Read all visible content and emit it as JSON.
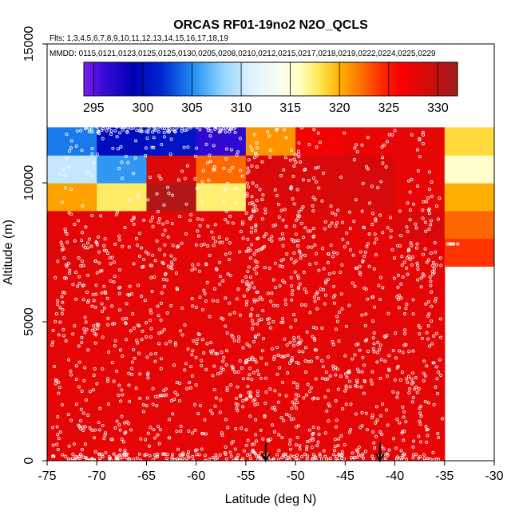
{
  "colors": {
    "background": "#ffffff",
    "axis": "#000000",
    "marker": "#ffffff",
    "missing_cell": "#ffffff"
  },
  "chart_data": {
    "type": "heatmap",
    "title": "ORCAS RF01-19no2 N2O_QCLS",
    "flights_text": "Flts: 1,3,4,5,6,7,8,9,10,11,12,13,14,15,16,17,18,19",
    "dates_text": "MMDD: 0115,0121,0123,0125,0125,0130,0205,0208,0210,0212,0215,0217,0218,0219,0222,0224,0225,0229",
    "xlabel": "Latitude (deg N)",
    "ylabel": "Altitude (m)",
    "xlim": [
      -75,
      -30
    ],
    "ylim": [
      0,
      15000
    ],
    "x_ticks": [
      -75,
      -70,
      -65,
      -60,
      -55,
      -50,
      -45,
      -40,
      -35,
      -30
    ],
    "y_ticks": [
      0,
      5000,
      10000,
      15000
    ],
    "colorbar": {
      "min": 294,
      "max": 332,
      "ticks": [
        295,
        300,
        305,
        310,
        315,
        320,
        325,
        330
      ],
      "stops": [
        {
          "v": 294,
          "c": "#7a1ff0"
        },
        {
          "v": 296,
          "c": "#3a0ad8"
        },
        {
          "v": 299,
          "c": "#0000b4"
        },
        {
          "v": 302,
          "c": "#0028d2"
        },
        {
          "v": 305,
          "c": "#1e8cf0"
        },
        {
          "v": 308,
          "c": "#8cd2ff"
        },
        {
          "v": 311,
          "c": "#e0f2ff"
        },
        {
          "v": 314,
          "c": "#fafff0"
        },
        {
          "v": 316,
          "c": "#ffffc0"
        },
        {
          "v": 318,
          "c": "#ffe650"
        },
        {
          "v": 320,
          "c": "#ffb000"
        },
        {
          "v": 322,
          "c": "#ff7800"
        },
        {
          "v": 324,
          "c": "#ff3200"
        },
        {
          "v": 326,
          "c": "#ff0000"
        },
        {
          "v": 329,
          "c": "#d20a0a"
        },
        {
          "v": 332,
          "c": "#a01e1e"
        }
      ]
    },
    "lat_bins": [
      -75,
      -70,
      -65,
      -60,
      -55,
      -50,
      -45,
      -40,
      -35
    ],
    "alt_bins": [
      0,
      1000,
      2000,
      3000,
      4000,
      5000,
      6000,
      7000,
      8000,
      9000,
      10000,
      11000,
      12000
    ],
    "cell_values": [
      [
        327.8,
        327.6,
        327.8,
        327.8,
        327.6,
        327.8,
        327.8,
        327.6
      ],
      [
        328.0,
        327.8,
        327.8,
        327.8,
        327.8,
        327.8,
        327.8,
        327.8
      ],
      [
        327.6,
        327.8,
        327.8,
        327.8,
        327.6,
        327.8,
        327.8,
        327.8
      ],
      [
        327.8,
        327.8,
        327.8,
        327.8,
        327.8,
        327.8,
        327.8,
        327.8
      ],
      [
        327.8,
        327.8,
        327.8,
        327.8,
        327.8,
        327.8,
        328.1,
        327.8
      ],
      [
        327.8,
        327.8,
        327.8,
        327.8,
        327.8,
        327.8,
        327.8,
        327.8
      ],
      [
        327.8,
        327.8,
        327.8,
        327.8,
        327.8,
        327.8,
        327.8,
        327.8
      ],
      [
        328.2,
        327.8,
        327.8,
        327.8,
        327.8,
        327.8,
        327.8,
        327.8
      ],
      [
        327.8,
        327.8,
        327.8,
        327.8,
        328.0,
        328.2,
        327.8,
        328.6
      ],
      [
        320.5,
        317.6,
        331.0,
        317.4,
        328.5,
        328.6,
        328.6,
        327.4
      ],
      [
        310.0,
        305.5,
        328.4,
        322.5,
        328.5,
        328.7,
        328.8,
        327.6
      ],
      [
        304.5,
        300.0,
        300.5,
        296.5,
        321.0,
        327.0,
        327.5,
        327.7
      ]
    ],
    "extra_cells": [
      {
        "lat": [
          -35,
          -30
        ],
        "alt": [
          7000,
          8000
        ],
        "value": 324.0
      },
      {
        "lat": [
          -35,
          -30
        ],
        "alt": [
          8000,
          9000
        ],
        "value": 322.5
      },
      {
        "lat": [
          -35,
          -30
        ],
        "alt": [
          9000,
          10000
        ],
        "value": 320.0
      },
      {
        "lat": [
          -35,
          -30
        ],
        "alt": [
          10000,
          11000
        ],
        "value": 315.5
      },
      {
        "lat": [
          -35,
          -30
        ],
        "alt": [
          11000,
          12000
        ],
        "value": 318.5
      }
    ],
    "arrows_lat": [
      -53,
      -41.5
    ],
    "sample_markers": "white open circles (aircraft samples) scattered over the binned field"
  }
}
